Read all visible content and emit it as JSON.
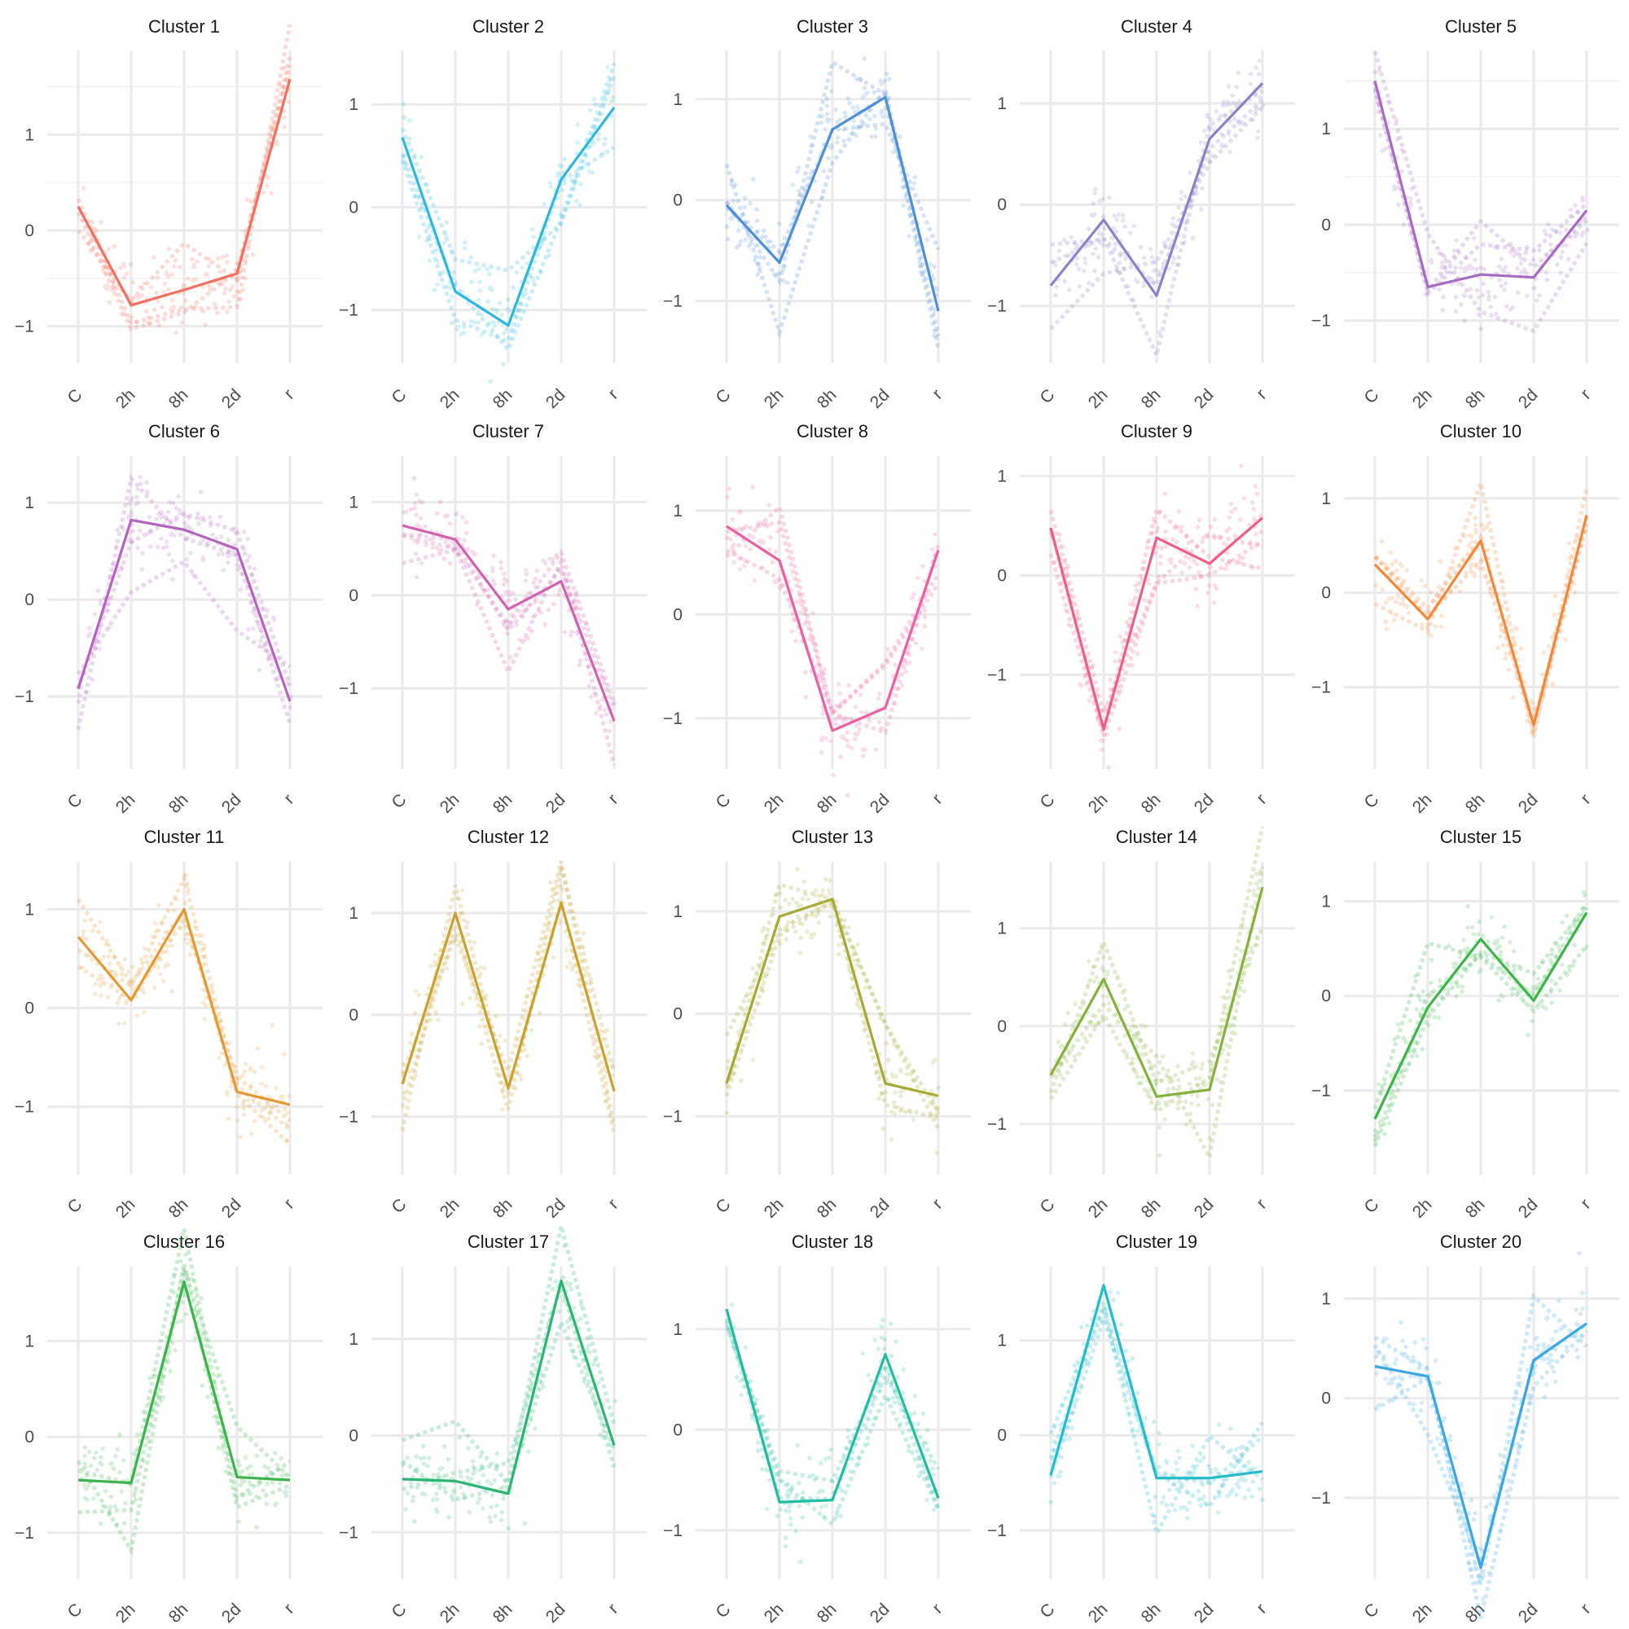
{
  "chart_data": [
    {
      "type": "line",
      "title": "Cluster 1",
      "color": "#F0715F",
      "categories": [
        "C",
        "2h",
        "8h",
        "2d",
        "r"
      ],
      "yticks": [
        "1",
        "0",
        "−1"
      ],
      "ylim": [
        -1.42,
        1.98
      ],
      "series": [
        {
          "values": [
            0.25,
            -0.78,
            -0.62,
            -0.45,
            1.58
          ]
        }
      ]
    },
    {
      "type": "line",
      "title": "Cluster 2",
      "color": "#2DB9DE",
      "categories": [
        "C",
        "2h",
        "8h",
        "2d",
        "r"
      ],
      "yticks": [
        "1",
        "0",
        "−1"
      ],
      "ylim": [
        -1.55,
        1.62
      ],
      "series": [
        {
          "values": [
            0.68,
            -0.82,
            -1.15,
            0.27,
            0.97
          ]
        }
      ]
    },
    {
      "type": "line",
      "title": "Cluster 3",
      "color": "#4E8FD6",
      "categories": [
        "C",
        "2h",
        "8h",
        "2d",
        "r"
      ],
      "yticks": [
        "1",
        "0",
        "−1"
      ],
      "ylim": [
        -1.65,
        1.58
      ],
      "series": [
        {
          "values": [
            -0.05,
            -0.62,
            0.7,
            1.02,
            -1.1
          ]
        }
      ]
    },
    {
      "type": "line",
      "title": "Cluster 4",
      "color": "#8C82C7",
      "categories": [
        "C",
        "2h",
        "8h",
        "2d",
        "r"
      ],
      "yticks": [
        "1",
        "0",
        "−1"
      ],
      "ylim": [
        -1.6,
        1.62
      ],
      "series": [
        {
          "values": [
            -0.8,
            -0.15,
            -0.9,
            0.65,
            1.2
          ]
        }
      ]
    },
    {
      "type": "line",
      "title": "Cluster 5",
      "color": "#A56CC1",
      "categories": [
        "C",
        "2h",
        "8h",
        "2d",
        "r"
      ],
      "yticks": [
        "1",
        "0",
        "−1"
      ],
      "ylim": [
        -1.48,
        1.92
      ],
      "series": [
        {
          "values": [
            1.5,
            -0.65,
            -0.52,
            -0.55,
            0.15
          ]
        }
      ]
    },
    {
      "type": "line",
      "title": "Cluster 6",
      "color": "#B565BE",
      "categories": [
        "C",
        "2h",
        "8h",
        "2d",
        "r"
      ],
      "yticks": [
        "1",
        "0",
        "−1"
      ],
      "ylim": [
        -1.78,
        1.58
      ],
      "series": [
        {
          "values": [
            -0.92,
            0.82,
            0.72,
            0.52,
            -1.05
          ]
        }
      ]
    },
    {
      "type": "line",
      "title": "Cluster 7",
      "color": "#D062AE",
      "categories": [
        "C",
        "2h",
        "8h",
        "2d",
        "r"
      ],
      "yticks": [
        "1",
        "0",
        "−1"
      ],
      "ylim": [
        -1.9,
        1.6
      ],
      "series": [
        {
          "values": [
            0.75,
            0.6,
            -0.15,
            0.15,
            -1.35
          ]
        }
      ]
    },
    {
      "type": "line",
      "title": "Cluster 8",
      "color": "#EC5FA0",
      "categories": [
        "C",
        "2h",
        "8h",
        "2d",
        "r"
      ],
      "yticks": [
        "1",
        "0",
        "−1"
      ],
      "ylim": [
        -1.52,
        1.62
      ],
      "series": [
        {
          "values": [
            0.85,
            0.52,
            -1.12,
            -0.9,
            0.62
          ]
        }
      ]
    },
    {
      "type": "line",
      "title": "Cluster 9",
      "color": "#EE5F85",
      "categories": [
        "C",
        "2h",
        "8h",
        "2d",
        "r"
      ],
      "yticks": [
        "1",
        "0",
        "−1"
      ],
      "ylim": [
        -1.98,
        1.3
      ],
      "series": [
        {
          "values": [
            0.48,
            -1.55,
            0.38,
            0.12,
            0.58
          ]
        }
      ]
    },
    {
      "type": "line",
      "title": "Cluster 10",
      "color": "#F0893A",
      "categories": [
        "C",
        "2h",
        "8h",
        "2d",
        "r"
      ],
      "yticks": [
        "1",
        "0",
        "−1"
      ],
      "ylim": [
        -1.9,
        1.55
      ],
      "series": [
        {
          "values": [
            0.3,
            -0.28,
            0.55,
            -1.4,
            0.82
          ]
        }
      ]
    },
    {
      "type": "line",
      "title": "Cluster 11",
      "color": "#E39A35",
      "categories": [
        "C",
        "2h",
        "8h",
        "2d",
        "r"
      ],
      "yticks": [
        "1",
        "0",
        "−1"
      ],
      "ylim": [
        -1.72,
        1.58
      ],
      "series": [
        {
          "values": [
            0.72,
            0.08,
            1.0,
            -0.85,
            -0.98
          ]
        }
      ]
    },
    {
      "type": "line",
      "title": "Cluster 12",
      "color": "#C9A231",
      "categories": [
        "C",
        "2h",
        "8h",
        "2d",
        "r"
      ],
      "yticks": [
        "1",
        "0",
        "−1"
      ],
      "ylim": [
        -1.6,
        1.6
      ],
      "series": [
        {
          "values": [
            -0.68,
            1.0,
            -0.72,
            1.1,
            -0.75
          ]
        }
      ]
    },
    {
      "type": "line",
      "title": "Cluster 13",
      "color": "#A6AA32",
      "categories": [
        "C",
        "2h",
        "8h",
        "2d",
        "r"
      ],
      "yticks": [
        "1",
        "0",
        "−1"
      ],
      "ylim": [
        -1.6,
        1.58
      ],
      "series": [
        {
          "values": [
            -0.68,
            0.95,
            1.12,
            -0.68,
            -0.8
          ]
        }
      ]
    },
    {
      "type": "line",
      "title": "Cluster 14",
      "color": "#86B13C",
      "categories": [
        "C",
        "2h",
        "8h",
        "2d",
        "r"
      ],
      "yticks": [
        "1",
        "0",
        "−1"
      ],
      "ylim": [
        -1.55,
        1.78
      ],
      "series": [
        {
          "values": [
            -0.5,
            0.48,
            -0.72,
            -0.65,
            1.42
          ]
        }
      ]
    },
    {
      "type": "line",
      "title": "Cluster 15",
      "color": "#3CB54A",
      "categories": [
        "C",
        "2h",
        "8h",
        "2d",
        "r"
      ],
      "yticks": [
        "1",
        "0",
        "−1"
      ],
      "ylim": [
        -1.92,
        1.52
      ],
      "series": [
        {
          "values": [
            -1.3,
            -0.12,
            0.6,
            -0.05,
            0.88
          ]
        }
      ]
    },
    {
      "type": "line",
      "title": "Cluster 16",
      "color": "#3BB54A",
      "categories": [
        "C",
        "2h",
        "8h",
        "2d",
        "r"
      ],
      "yticks": [
        "1",
        "0",
        "−1"
      ],
      "ylim": [
        -1.52,
        1.88
      ],
      "series": [
        {
          "values": [
            -0.45,
            -0.48,
            1.62,
            -0.42,
            -0.45
          ]
        }
      ]
    },
    {
      "type": "line",
      "title": "Cluster 17",
      "color": "#29B672",
      "categories": [
        "C",
        "2h",
        "8h",
        "2d",
        "r"
      ],
      "yticks": [
        "1",
        "0",
        "−1"
      ],
      "ylim": [
        -1.52,
        1.85
      ],
      "series": [
        {
          "values": [
            -0.45,
            -0.47,
            -0.6,
            1.6,
            -0.1
          ]
        }
      ]
    },
    {
      "type": "line",
      "title": "Cluster 18",
      "color": "#22BCA0",
      "categories": [
        "C",
        "2h",
        "8h",
        "2d",
        "r"
      ],
      "yticks": [
        "1",
        "0",
        "−1"
      ],
      "ylim": [
        -1.52,
        1.72
      ],
      "series": [
        {
          "values": [
            1.2,
            -0.72,
            -0.7,
            0.75,
            -0.68
          ]
        }
      ]
    },
    {
      "type": "line",
      "title": "Cluster 19",
      "color": "#22BCCB",
      "categories": [
        "C",
        "2h",
        "8h",
        "2d",
        "r"
      ],
      "yticks": [
        "1",
        "0",
        "−1"
      ],
      "ylim": [
        -1.55,
        1.88
      ],
      "series": [
        {
          "values": [
            -0.42,
            1.58,
            -0.45,
            -0.45,
            -0.38
          ]
        }
      ]
    },
    {
      "type": "line",
      "title": "Cluster 20",
      "color": "#3AA6E2",
      "categories": [
        "C",
        "2h",
        "8h",
        "2d",
        "r"
      ],
      "yticks": [
        "1",
        "0",
        "−1"
      ],
      "ylim": [
        -1.85,
        1.42
      ],
      "series": [
        {
          "values": [
            0.32,
            0.22,
            -1.7,
            0.38,
            0.75
          ]
        }
      ]
    }
  ]
}
